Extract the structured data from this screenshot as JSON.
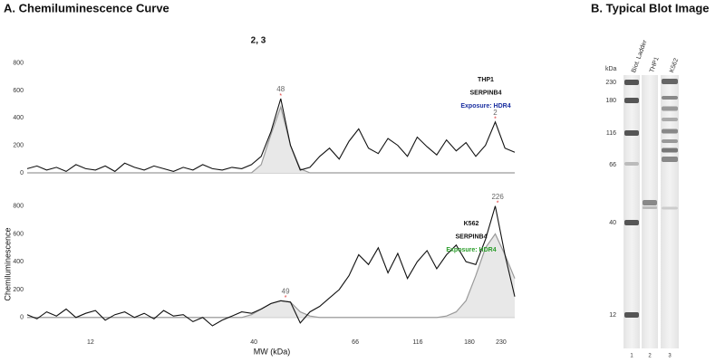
{
  "panel_title": "A. Chemiluminescence Curve",
  "chart_data": [
    {
      "type": "line",
      "subtitle": "2, 3",
      "x": [
        0,
        2,
        4,
        6,
        8,
        10,
        12,
        14,
        16,
        18,
        20,
        22,
        24,
        26,
        28,
        30,
        32,
        34,
        36,
        38,
        40,
        42,
        44,
        46,
        48,
        50,
        52,
        54,
        56,
        58,
        60,
        62,
        64,
        66,
        68,
        70,
        72,
        74,
        76,
        78,
        80,
        82,
        84,
        86,
        88,
        90,
        92,
        94,
        96,
        98,
        100
      ],
      "xlim": [
        0,
        100
      ],
      "ylim": [
        -20,
        850
      ],
      "yticks": [
        0,
        200,
        400,
        600,
        800
      ],
      "series": [
        {
          "color": "#111111",
          "values": [
            30,
            50,
            20,
            40,
            10,
            60,
            30,
            20,
            50,
            10,
            70,
            40,
            20,
            50,
            30,
            10,
            40,
            20,
            60,
            30,
            20,
            40,
            30,
            60,
            120,
            300,
            540,
            200,
            20,
            40,
            120,
            180,
            100,
            230,
            320,
            180,
            140,
            250,
            200,
            120,
            260,
            190,
            130,
            240,
            160,
            220,
            120,
            200,
            370,
            180,
            150
          ]
        },
        {
          "color": "#9a9a9a",
          "fill": "#e8e8e8",
          "values": [
            0,
            0,
            0,
            0,
            0,
            0,
            0,
            0,
            0,
            0,
            0,
            0,
            0,
            0,
            0,
            0,
            0,
            0,
            0,
            0,
            0,
            0,
            0,
            0,
            60,
            280,
            480,
            200,
            30,
            0,
            0,
            0,
            0,
            0,
            0,
            0,
            0,
            0,
            0,
            0,
            0,
            0,
            0,
            0,
            0,
            0,
            0,
            0,
            0,
            0,
            0
          ]
        }
      ],
      "annotations": [
        {
          "text": "THP1",
          "color": "#111111"
        },
        {
          "text": "SERPINB4",
          "color": "#111111"
        },
        {
          "text": "Exposure: HDR4",
          "color": "#1a2fa0"
        }
      ],
      "peaks": [
        {
          "x": 52,
          "y": 540,
          "text": "48"
        },
        {
          "x": 96,
          "y": 370,
          "text": "2"
        }
      ]
    },
    {
      "type": "line",
      "xlabel": "MW (kDa)",
      "ylabel": "Chemiluminescence",
      "x": [
        0,
        2,
        4,
        6,
        8,
        10,
        12,
        14,
        16,
        18,
        20,
        22,
        24,
        26,
        28,
        30,
        32,
        34,
        36,
        38,
        40,
        42,
        44,
        46,
        48,
        50,
        52,
        54,
        56,
        58,
        60,
        62,
        64,
        66,
        68,
        70,
        72,
        74,
        76,
        78,
        80,
        82,
        84,
        86,
        88,
        90,
        92,
        94,
        96,
        98,
        100
      ],
      "xlim": [
        0,
        100
      ],
      "ylim": [
        -60,
        850
      ],
      "yticks": [
        0,
        200,
        400,
        600,
        800
      ],
      "xticks": [
        {
          "value": 13,
          "label": "12"
        },
        {
          "value": 46.5,
          "label": "40"
        },
        {
          "value": 67.3,
          "label": "66"
        },
        {
          "value": 80.1,
          "label": "116"
        },
        {
          "value": 90.7,
          "label": "180"
        },
        {
          "value": 97.2,
          "label": "230"
        }
      ],
      "series": [
        {
          "color": "#111111",
          "values": [
            20,
            -10,
            40,
            10,
            60,
            0,
            30,
            50,
            -20,
            20,
            40,
            0,
            30,
            -10,
            50,
            10,
            20,
            -30,
            0,
            -60,
            -20,
            10,
            40,
            30,
            60,
            100,
            120,
            110,
            -40,
            40,
            80,
            140,
            200,
            300,
            450,
            380,
            500,
            320,
            460,
            280,
            400,
            480,
            350,
            450,
            520,
            400,
            380,
            560,
            800,
            450,
            150
          ]
        },
        {
          "color": "#9a9a9a",
          "fill": "#e8e8e8",
          "values": [
            0,
            0,
            0,
            0,
            0,
            0,
            0,
            0,
            0,
            0,
            0,
            0,
            0,
            0,
            0,
            0,
            0,
            0,
            0,
            0,
            0,
            0,
            0,
            20,
            60,
            100,
            120,
            110,
            40,
            10,
            0,
            0,
            0,
            0,
            0,
            0,
            0,
            0,
            0,
            0,
            0,
            0,
            0,
            10,
            40,
            120,
            300,
            500,
            600,
            450,
            280
          ]
        }
      ],
      "annotations": [
        {
          "text": "K562",
          "color": "#111111"
        },
        {
          "text": "SERPINB4",
          "color": "#111111"
        },
        {
          "text": "Exposure: HDR4",
          "color": "#2a9d2a"
        }
      ],
      "peaks": [
        {
          "x": 53,
          "y": 120,
          "text": "49"
        },
        {
          "x": 96.5,
          "y": 800,
          "text": "226"
        }
      ]
    }
  ],
  "blot": {
    "title": "B.   Typical Blot Image",
    "unit": "kDa",
    "markers": [
      "230",
      "180",
      "116",
      "66",
      "40",
      "12"
    ],
    "lanes": [
      "Biot. Ladder",
      "THP1",
      "K562"
    ],
    "lane_numbers": [
      "1",
      "2",
      "3"
    ]
  }
}
